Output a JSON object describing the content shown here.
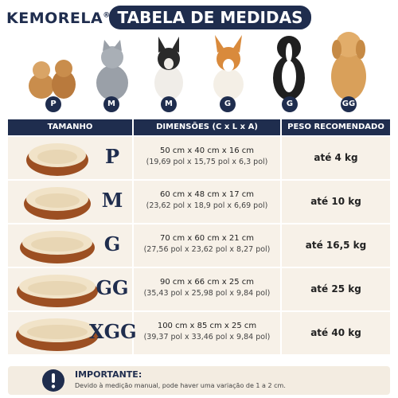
{
  "brand": "KEMORELA",
  "brand_mark": "®",
  "title": "TABELA DE MEDIDAS",
  "pets": [
    {
      "size": "P"
    },
    {
      "size": "M"
    },
    {
      "size": "M"
    },
    {
      "size": "G"
    },
    {
      "size": "G"
    },
    {
      "size": "GG"
    }
  ],
  "table": {
    "headers": [
      "TAMANHO",
      "DIMENSÕES (C x L x A)",
      "PESO RECOMENDADO"
    ],
    "rows": [
      {
        "size": "P",
        "cm": "50 cm x 40 cm x 16 cm",
        "pol": "(19,69 pol x 15,75 pol x 6,3 pol)",
        "weight": "até 4 kg"
      },
      {
        "size": "M",
        "cm": "60 cm x 48 cm x 17 cm",
        "pol": "(23,62 pol x 18,9 pol x 6,69 pol)",
        "weight": "até 10 kg"
      },
      {
        "size": "G",
        "cm": "70 cm x 60 cm x 21 cm",
        "pol": "(27,56 pol x 23,62 pol x 8,27 pol)",
        "weight": "até 16,5 kg"
      },
      {
        "size": "GG",
        "cm": "90 cm x 66 cm x 25 cm",
        "pol": "(35,43 pol x 25,98 pol x 9,84 pol)",
        "weight": "até 25 kg"
      },
      {
        "size": "XGG",
        "cm": "100 cm x 85 cm x 25 cm",
        "pol": "(39,37 pol x 33,46 pol x 9,84 pol)",
        "weight": "até 40 kg"
      }
    ]
  },
  "note": {
    "title": "IMPORTANTE:",
    "text": "Devido à medição manual, pode haver uma variação de 1 a 2 cm."
  }
}
